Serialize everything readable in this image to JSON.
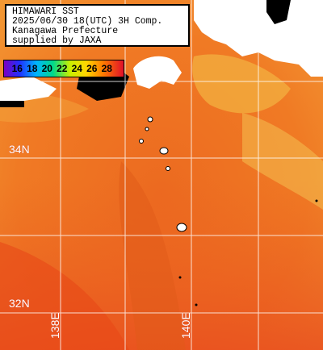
{
  "header": {
    "lines": [
      "HIMAWARI SST",
      "2025/06/30 18(UTC) 3H Comp.",
      "Kanagawa Prefecture",
      "supplied by JAXA"
    ]
  },
  "legend": {
    "ticks": [
      "16",
      "18",
      "20",
      "22",
      "24",
      "26",
      "28"
    ]
  },
  "grid_labels": {
    "lat_34": "34N",
    "lat_32": "32N",
    "lon_138": "138E",
    "lon_140": "140E"
  },
  "colors": {
    "land": "#ffffff",
    "no_data": "#000000",
    "grid_line": "#ffffff",
    "sea_warm": "#f06a1a",
    "sea_hot": "#e8401a",
    "sea_cooler": "#f2b844"
  }
}
